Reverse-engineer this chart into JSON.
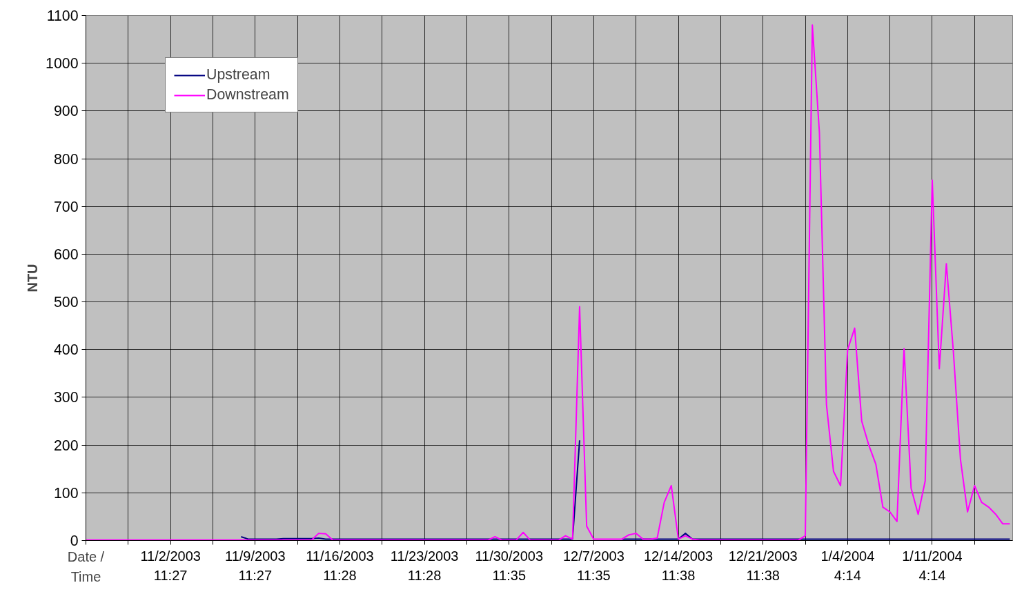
{
  "chart_data": {
    "type": "line",
    "xlabel": "Date /\nTime",
    "ylabel": "NTU",
    "categories": [
      null,
      null,
      null,
      null,
      null,
      null,
      null,
      null,
      null,
      null,
      null,
      null,
      "11/2/2003\n11:27",
      null,
      null,
      null,
      null,
      null,
      null,
      null,
      null,
      null,
      null,
      null,
      "11/9/2003\n11:27",
      null,
      null,
      null,
      null,
      null,
      null,
      null,
      null,
      null,
      null,
      null,
      "11/16/2003\n11:28",
      null,
      null,
      null,
      null,
      null,
      null,
      null,
      null,
      null,
      null,
      null,
      "11/23/2003\n11:28",
      null,
      null,
      null,
      null,
      null,
      null,
      null,
      null,
      null,
      null,
      null,
      "11/30/2003\n11:35",
      null,
      null,
      null,
      null,
      null,
      null,
      null,
      null,
      null,
      null,
      null,
      "12/7/2003\n11:35",
      null,
      null,
      null,
      null,
      null,
      null,
      null,
      null,
      null,
      null,
      null,
      "12/14/2003\n11:38",
      null,
      null,
      null,
      null,
      null,
      null,
      null,
      null,
      null,
      null,
      null,
      "12/21/2003\n11:38",
      null,
      null,
      null,
      null,
      null,
      null,
      null,
      null,
      null,
      null,
      null,
      "1/4/2004\n4:14",
      null,
      null,
      null,
      null,
      null,
      null,
      null,
      null,
      null,
      null,
      null,
      "1/11/2004\n4:14",
      null,
      null,
      null,
      null,
      null,
      null,
      null,
      null,
      null,
      null,
      null
    ],
    "ylim": [
      0,
      1100
    ],
    "yticks": [
      0,
      100,
      200,
      300,
      400,
      500,
      600,
      700,
      800,
      900,
      1000,
      1100
    ],
    "grid": true,
    "legend": "top left",
    "marker": "none",
    "line_style": "solid",
    "series": [
      {
        "name": "Upstream",
        "color": "#000080",
        "values": [
          null,
          null,
          null,
          null,
          null,
          null,
          null,
          null,
          null,
          null,
          null,
          null,
          null,
          null,
          null,
          null,
          null,
          null,
          null,
          null,
          null,
          null,
          8,
          3,
          3,
          3,
          3,
          3,
          4,
          4,
          4,
          4,
          4,
          5,
          3,
          3,
          3,
          3,
          3,
          3,
          3,
          3,
          3,
          3,
          3,
          3,
          3,
          3,
          3,
          3,
          3,
          3,
          3,
          3,
          3,
          3,
          3,
          3,
          3,
          3,
          3,
          3,
          3,
          3,
          3,
          3,
          3,
          3,
          3,
          3,
          210,
          null,
          null,
          null,
          null,
          null,
          3,
          3,
          3,
          3,
          3,
          3,
          3,
          3,
          3,
          15,
          3,
          3,
          3,
          3,
          3,
          3,
          3,
          3,
          3,
          3,
          3,
          3,
          3,
          3,
          3,
          3,
          3,
          3,
          3,
          3,
          3,
          3,
          3,
          3,
          3,
          3,
          3,
          3,
          3,
          3,
          3,
          3,
          3,
          3,
          3,
          3,
          3,
          3,
          3,
          3,
          3,
          3,
          3,
          3,
          3,
          3
        ]
      },
      {
        "name": "Downstream",
        "color": "#ff00ff",
        "values": [
          1,
          1,
          1,
          1,
          1,
          1,
          1,
          1,
          1,
          1,
          1,
          1,
          1,
          1,
          1,
          1,
          1,
          1,
          1,
          1,
          1,
          1,
          1,
          1,
          1,
          1,
          1,
          1,
          1,
          1,
          1,
          1,
          1,
          15,
          14,
          1,
          1,
          1,
          1,
          1,
          1,
          1,
          1,
          1,
          1,
          1,
          1,
          1,
          1,
          1,
          1,
          1,
          1,
          1,
          1,
          1,
          1,
          1,
          8,
          1,
          1,
          1,
          17,
          1,
          1,
          1,
          1,
          1,
          10,
          3,
          490,
          30,
          3,
          3,
          3,
          3,
          3,
          12,
          15,
          3,
          3,
          5,
          80,
          115,
          3,
          10,
          3,
          1,
          1,
          1,
          1,
          1,
          1,
          1,
          1,
          1,
          1,
          1,
          1,
          1,
          1,
          1,
          10,
          1080,
          855,
          285,
          145,
          115,
          400,
          445,
          250,
          200,
          160,
          70,
          60,
          40,
          402,
          110,
          55,
          125,
          755,
          360,
          580,
          395,
          170,
          60,
          115,
          80,
          70,
          55,
          35,
          35
        ]
      }
    ]
  }
}
